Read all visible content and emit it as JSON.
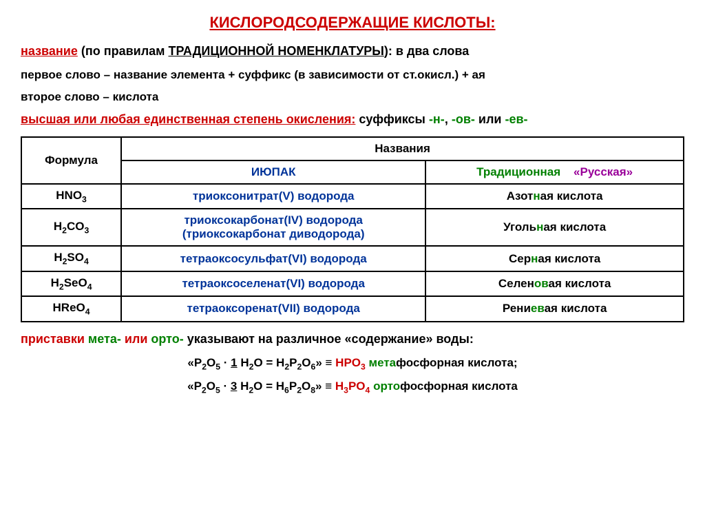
{
  "colors": {
    "red": "#cc0000",
    "green": "#008000",
    "blue": "#003399",
    "purple": "#990099",
    "black": "#000000"
  },
  "title": "КИСЛОРОДСОДЕРЖАЩИЕ КИСЛОТЫ:",
  "rule": {
    "name_label": "название",
    "rule_text": " (по правилам ",
    "trad_nom": "ТРАДИЦИОННОЙ НОМЕНКЛАТУРЫ",
    "rule_end": "): в два слова",
    "first_word": "первое слово – название элемента + суффикс (в зависимости от ст.окисл.) + ая",
    "second_word": "второе слово – кислота"
  },
  "oxidation": {
    "prefix": "высшая или любая единственная степень окисления:",
    "suffix_label": "  суффиксы ",
    "s1": "-н-",
    "s2": "-ов-",
    "or": " или ",
    "s3": "-ев-",
    "comma": ", "
  },
  "table": {
    "headers": {
      "formula": "Формула",
      "names": "Названия",
      "iupac": "ИЮПАК",
      "traditional": "Традиционная",
      "russian": "«Русская»"
    },
    "rows": [
      {
        "formula": "HNO<sub>3</sub>",
        "iupac": "триоксонитрат(V) водорода",
        "trad_pre": "Азот",
        "trad_hl": "н",
        "trad_post": "ая кислота"
      },
      {
        "formula": "H<sub>2</sub>CO<sub>3</sub>",
        "iupac": "триоксокарбонат(IV) водорода<br>(триоксокарбонат диводорода)",
        "trad_pre": "Уголь",
        "trad_hl": "н",
        "trad_post": "ая кислота"
      },
      {
        "formula": "H<sub>2</sub>SO<sub>4</sub>",
        "iupac": "тетраоксосульфат(VI) водорода",
        "trad_pre": "Сер",
        "trad_hl": "н",
        "trad_post": "ая кислота"
      },
      {
        "formula": "H<sub>2</sub>SeO<sub>4</sub>",
        "iupac": "тетраоксоселенат(VI) водорода",
        "trad_pre": "Селен",
        "trad_hl": "ов",
        "trad_post": "ая кислота"
      },
      {
        "formula": "HReO<sub>4</sub>",
        "iupac": "тетраоксоренат(VII) водорода",
        "trad_pre": "Рени",
        "trad_hl": "ев",
        "trad_post": "ая кислота"
      }
    ]
  },
  "footer": {
    "prefix_label": "приставки ",
    "meta": "мета-",
    "or": " или ",
    "orto": "орто-",
    "explain": " указывают на различное «содержание» воды:",
    "eq1_a": "«P<sub>2</sub>O<sub>5</sub> · ",
    "eq1_u": "1",
    "eq1_b": " H<sub>2</sub>O = H<sub>2</sub>P<sub>2</sub>O<sub>6</sub>» ≡ ",
    "eq1_c": "HPO<sub>3</sub>",
    "eq1_m": " мета",
    "eq1_d": "фосфорная кислота;",
    "eq2_a": "«P<sub>2</sub>O<sub>5</sub> · ",
    "eq2_u": "3",
    "eq2_b": " H<sub>2</sub>O = H<sub>6</sub>P<sub>2</sub>O<sub>8</sub>» ≡ ",
    "eq2_c": "H<sub>3</sub>PO<sub>4</sub>",
    "eq2_m": " орто",
    "eq2_d": "фосфорная кислота"
  }
}
